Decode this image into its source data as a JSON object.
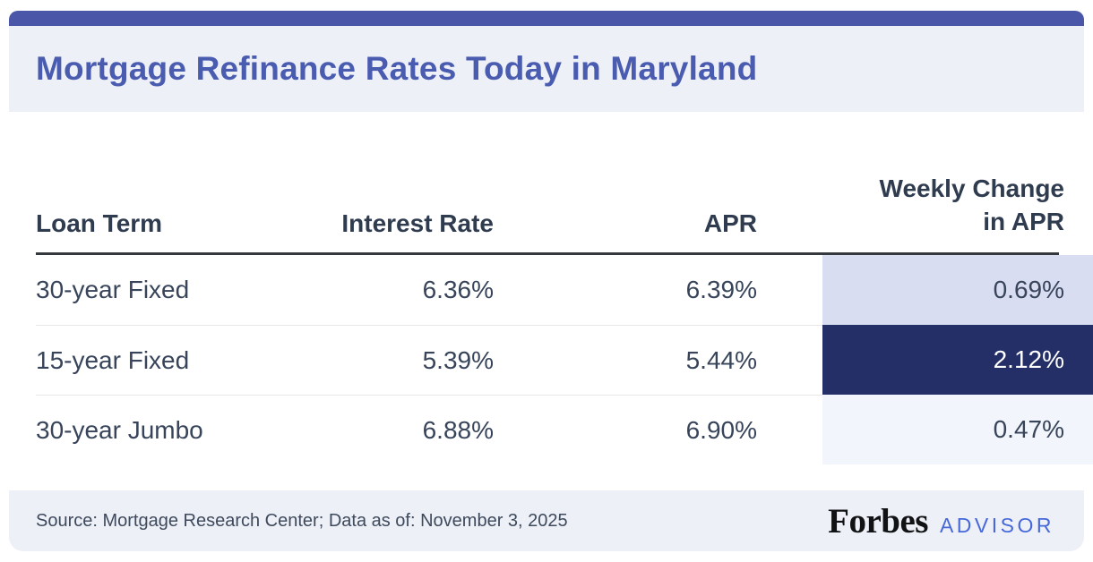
{
  "title": "Mortgage Refinance Rates Today in Maryland",
  "table": {
    "header": {
      "loan_term": "Loan Term",
      "interest_rate": "Interest Rate",
      "apr": "APR",
      "weekly_change_line1": "Weekly Change",
      "weekly_change_line2": "in APR"
    },
    "rows": [
      {
        "loan_term": "30-year Fixed",
        "interest_rate": "6.36%",
        "apr": "6.39%",
        "weekly_change": "0.69%",
        "weekly_highlight": "light"
      },
      {
        "loan_term": "15-year Fixed",
        "interest_rate": "5.39%",
        "apr": "5.44%",
        "weekly_change": "2.12%",
        "weekly_highlight": "dark"
      },
      {
        "loan_term": "30-year Jumbo",
        "interest_rate": "6.88%",
        "apr": "6.90%",
        "weekly_change": "0.47%",
        "weekly_highlight": "faint"
      }
    ]
  },
  "footer": {
    "source": "Source: Mortgage Research Center; Data as of: November 3, 2025",
    "brand": "Forbes",
    "brand_suffix": "ADVISOR"
  },
  "colors": {
    "top_bar": "#4a57a8",
    "title_text": "#4a5cb0",
    "band_background": "#eef0f8",
    "header_text": "#2f3b4e",
    "body_text": "#37445a",
    "header_rule": "#35383d",
    "row_divider": "#e7e7e9",
    "weekly_cell_light": "#d9ddf2",
    "weekly_cell_dark": "#232f66",
    "weekly_cell_faint": "#f2f5fb",
    "weekly_dark_text": "#ffffff",
    "advisor_blue": "#4668d9",
    "forbes_black": "#101214"
  },
  "chart_data": {
    "type": "table",
    "title": "Mortgage Refinance Rates Today in Maryland",
    "columns": [
      "Loan Term",
      "Interest Rate",
      "APR",
      "Weekly Change in APR"
    ],
    "rows": [
      [
        "30-year Fixed",
        "6.36%",
        "6.39%",
        "0.69%"
      ],
      [
        "15-year Fixed",
        "5.39%",
        "5.44%",
        "2.12%"
      ],
      [
        "30-year Jumbo",
        "6.88%",
        "6.90%",
        "0.47%"
      ]
    ],
    "highlight_note": "Weekly Change in APR column is shaded by magnitude; 15-year Fixed (2.12%) has the darkest shading",
    "source": "Source: Mortgage Research Center; Data as of: November 3, 2025"
  }
}
